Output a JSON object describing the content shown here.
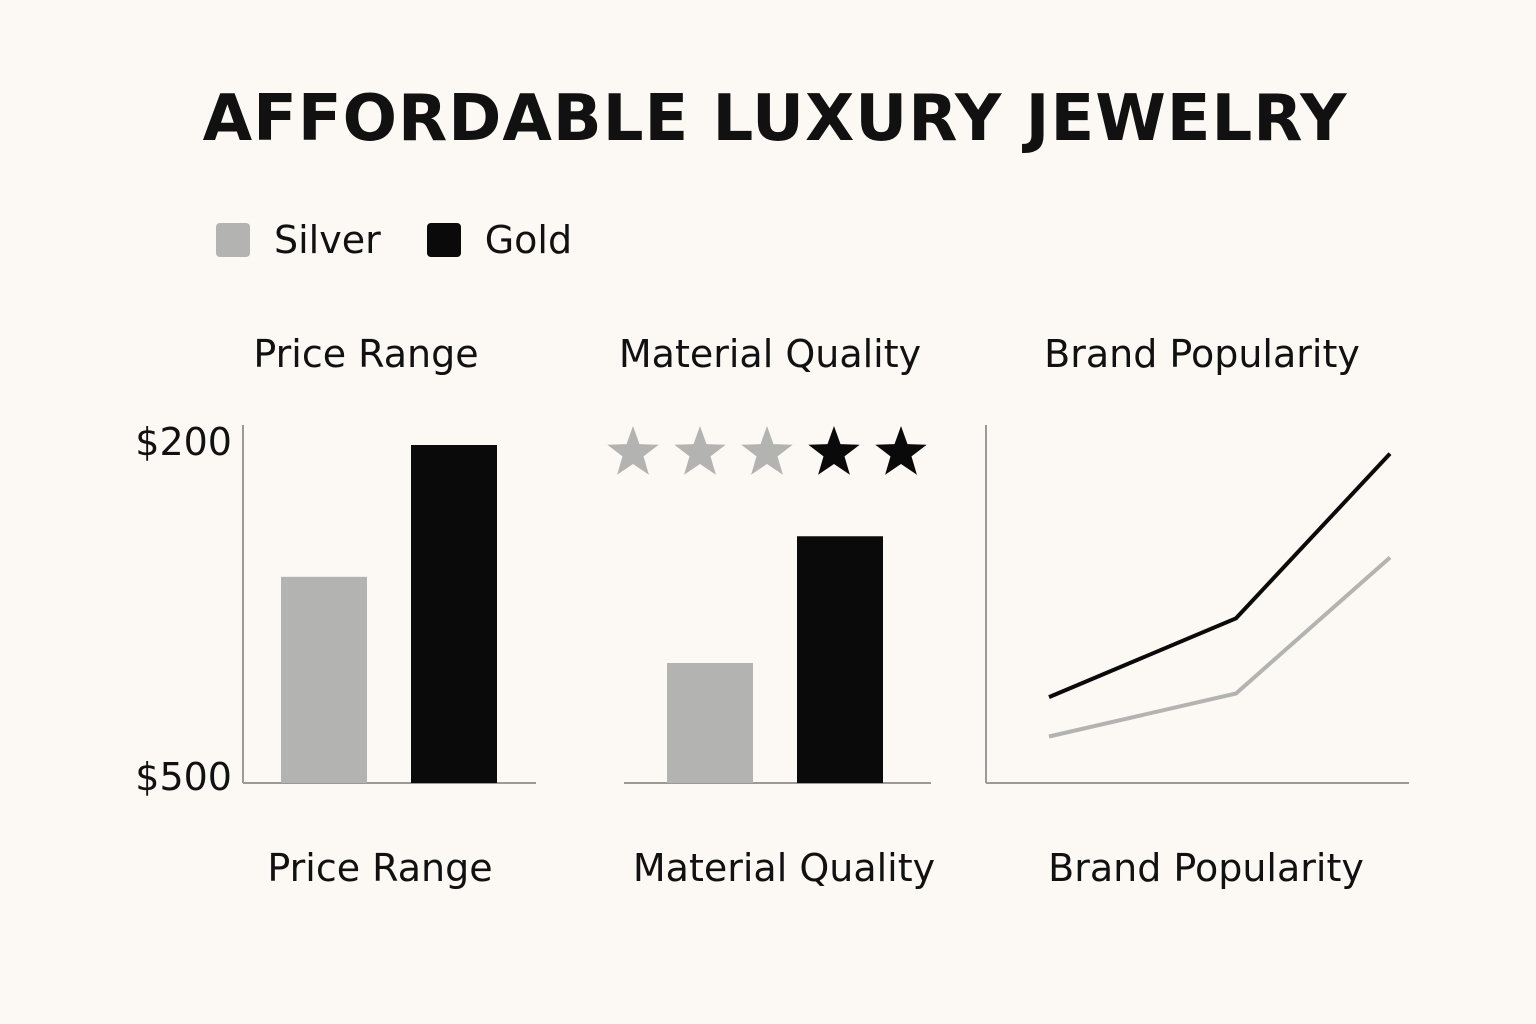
{
  "title": "AFFORDABLE LUXURY JEWELRY",
  "legend": [
    {
      "name": "Silver",
      "color": "#b3b3b1"
    },
    {
      "name": "Gold",
      "color": "#0a0a0a"
    }
  ],
  "colors": {
    "background": "#fcf9f4",
    "silver": "#b3b3b1",
    "gold": "#0a0a0a",
    "axis": "#9a9a98",
    "star_silver": "#b3b3b1",
    "star_gold": "#0a0a0a"
  },
  "chart_data": [
    {
      "type": "bar",
      "title": "Price Range",
      "xlabel": "Price Range",
      "y_tick_labels": [
        "$200",
        "$500"
      ],
      "series": [
        {
          "name": "Silver",
          "value_fraction": 0.61
        },
        {
          "name": "Gold",
          "value_fraction": 1.0
        }
      ],
      "grid": false
    },
    {
      "type": "bar",
      "title": "Material Quality",
      "xlabel": "Material Quality",
      "stars": {
        "total": 5,
        "silver": 3,
        "gold": 2
      },
      "series": [
        {
          "name": "Silver",
          "value_fraction": 0.355
        },
        {
          "name": "Gold",
          "value_fraction": 0.73
        }
      ],
      "grid": false
    },
    {
      "type": "line",
      "title": "Brand Popularity",
      "xlabel": "Brand Popularity",
      "x": [
        1,
        2,
        3
      ],
      "series": [
        {
          "name": "Gold",
          "values": [
            0.24,
            0.46,
            0.92
          ]
        },
        {
          "name": "Silver",
          "values": [
            0.13,
            0.25,
            0.63
          ]
        }
      ],
      "grid": false
    }
  ]
}
